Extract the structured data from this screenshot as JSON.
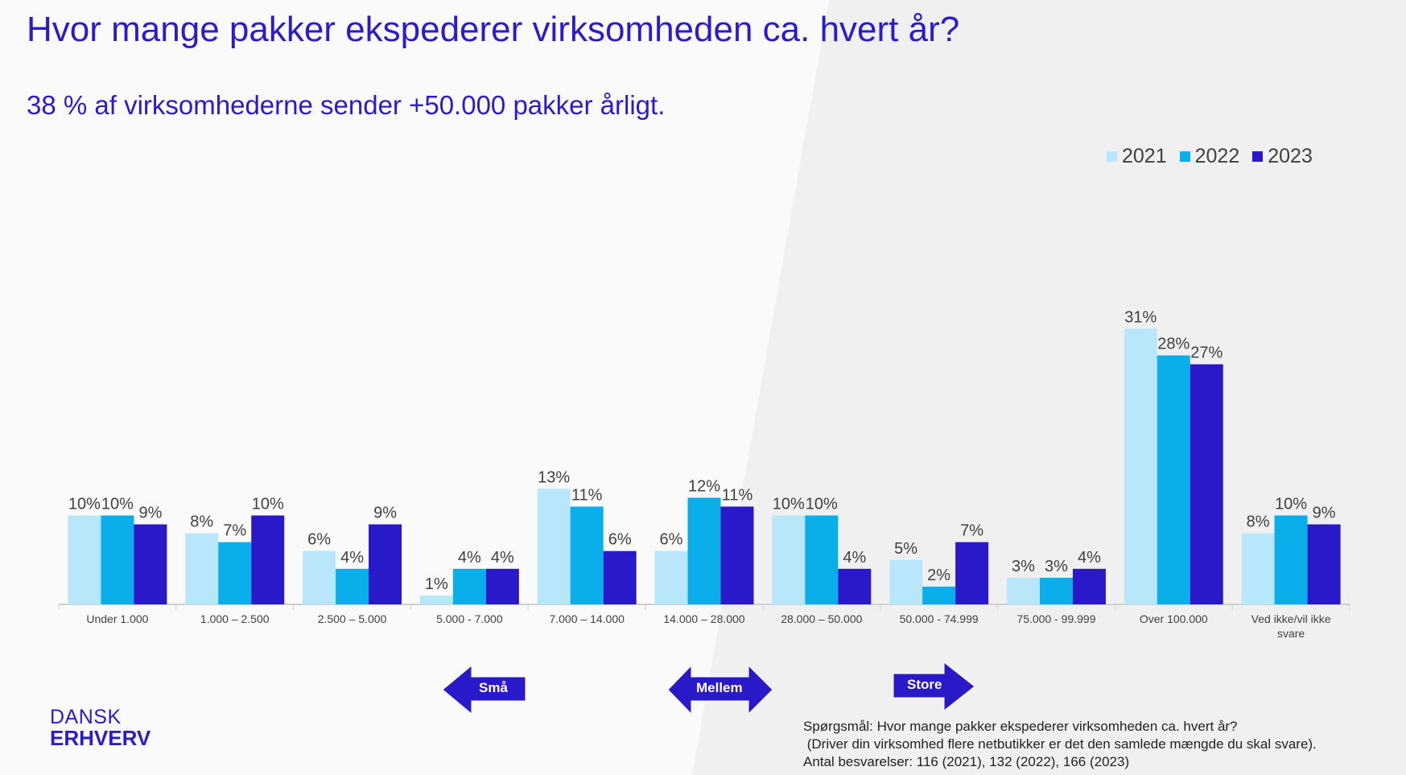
{
  "title": "Hvor mange pakker ekspederer virksomheden ca. hvert år?",
  "subtitle": "38 % af virksomhederne sender +50.000 pakker årligt.",
  "colors": {
    "accent": "#2a1bcb",
    "2021": "#b8e7fb",
    "2022": "#0aaeea",
    "2023": "#2a19c9"
  },
  "chart_data": {
    "type": "bar",
    "title": "Hvor mange pakker ekspederer virksomheden ca. hvert år?",
    "xlabel": "",
    "ylabel": "",
    "ylim": [
      0,
      35
    ],
    "grid": false,
    "legend_position": "top-right",
    "categories": [
      "Under 1.000",
      "1.000 – 2.500",
      "2.500 – 5.000",
      "5.000 - 7.000",
      "7.000 – 14.000",
      "14.000 – 28.000",
      "28.000 – 50.000",
      "50.000 - 74.999",
      "75.000 - 99.999",
      "Over 100.000",
      "Ved ikke/vil ikke svare"
    ],
    "series": [
      {
        "name": "2021",
        "values": [
          10,
          8,
          6,
          1,
          13,
          6,
          10,
          5,
          3,
          31,
          8
        ]
      },
      {
        "name": "2022",
        "values": [
          10,
          7,
          4,
          4,
          11,
          12,
          10,
          2,
          3,
          28,
          10
        ]
      },
      {
        "name": "2023",
        "values": [
          9,
          10,
          9,
          4,
          6,
          11,
          4,
          7,
          4,
          27,
          9
        ]
      }
    ]
  },
  "arrows": {
    "small": "Små",
    "medium": "Mellem",
    "large": "Store"
  },
  "logo": {
    "line1": "DANSK",
    "line2": "ERHVERV"
  },
  "note": {
    "line1": "Spørgsmål: Hvor mange pakker ekspederer virksomheden ca. hvert år?",
    "line2": " (Driver din virksomhed flere netbutikker er det den samlede mængde du skal svare).",
    "line3": "Antal besvarelser: 116 (2021), 132 (2022), 166 (2023)"
  }
}
